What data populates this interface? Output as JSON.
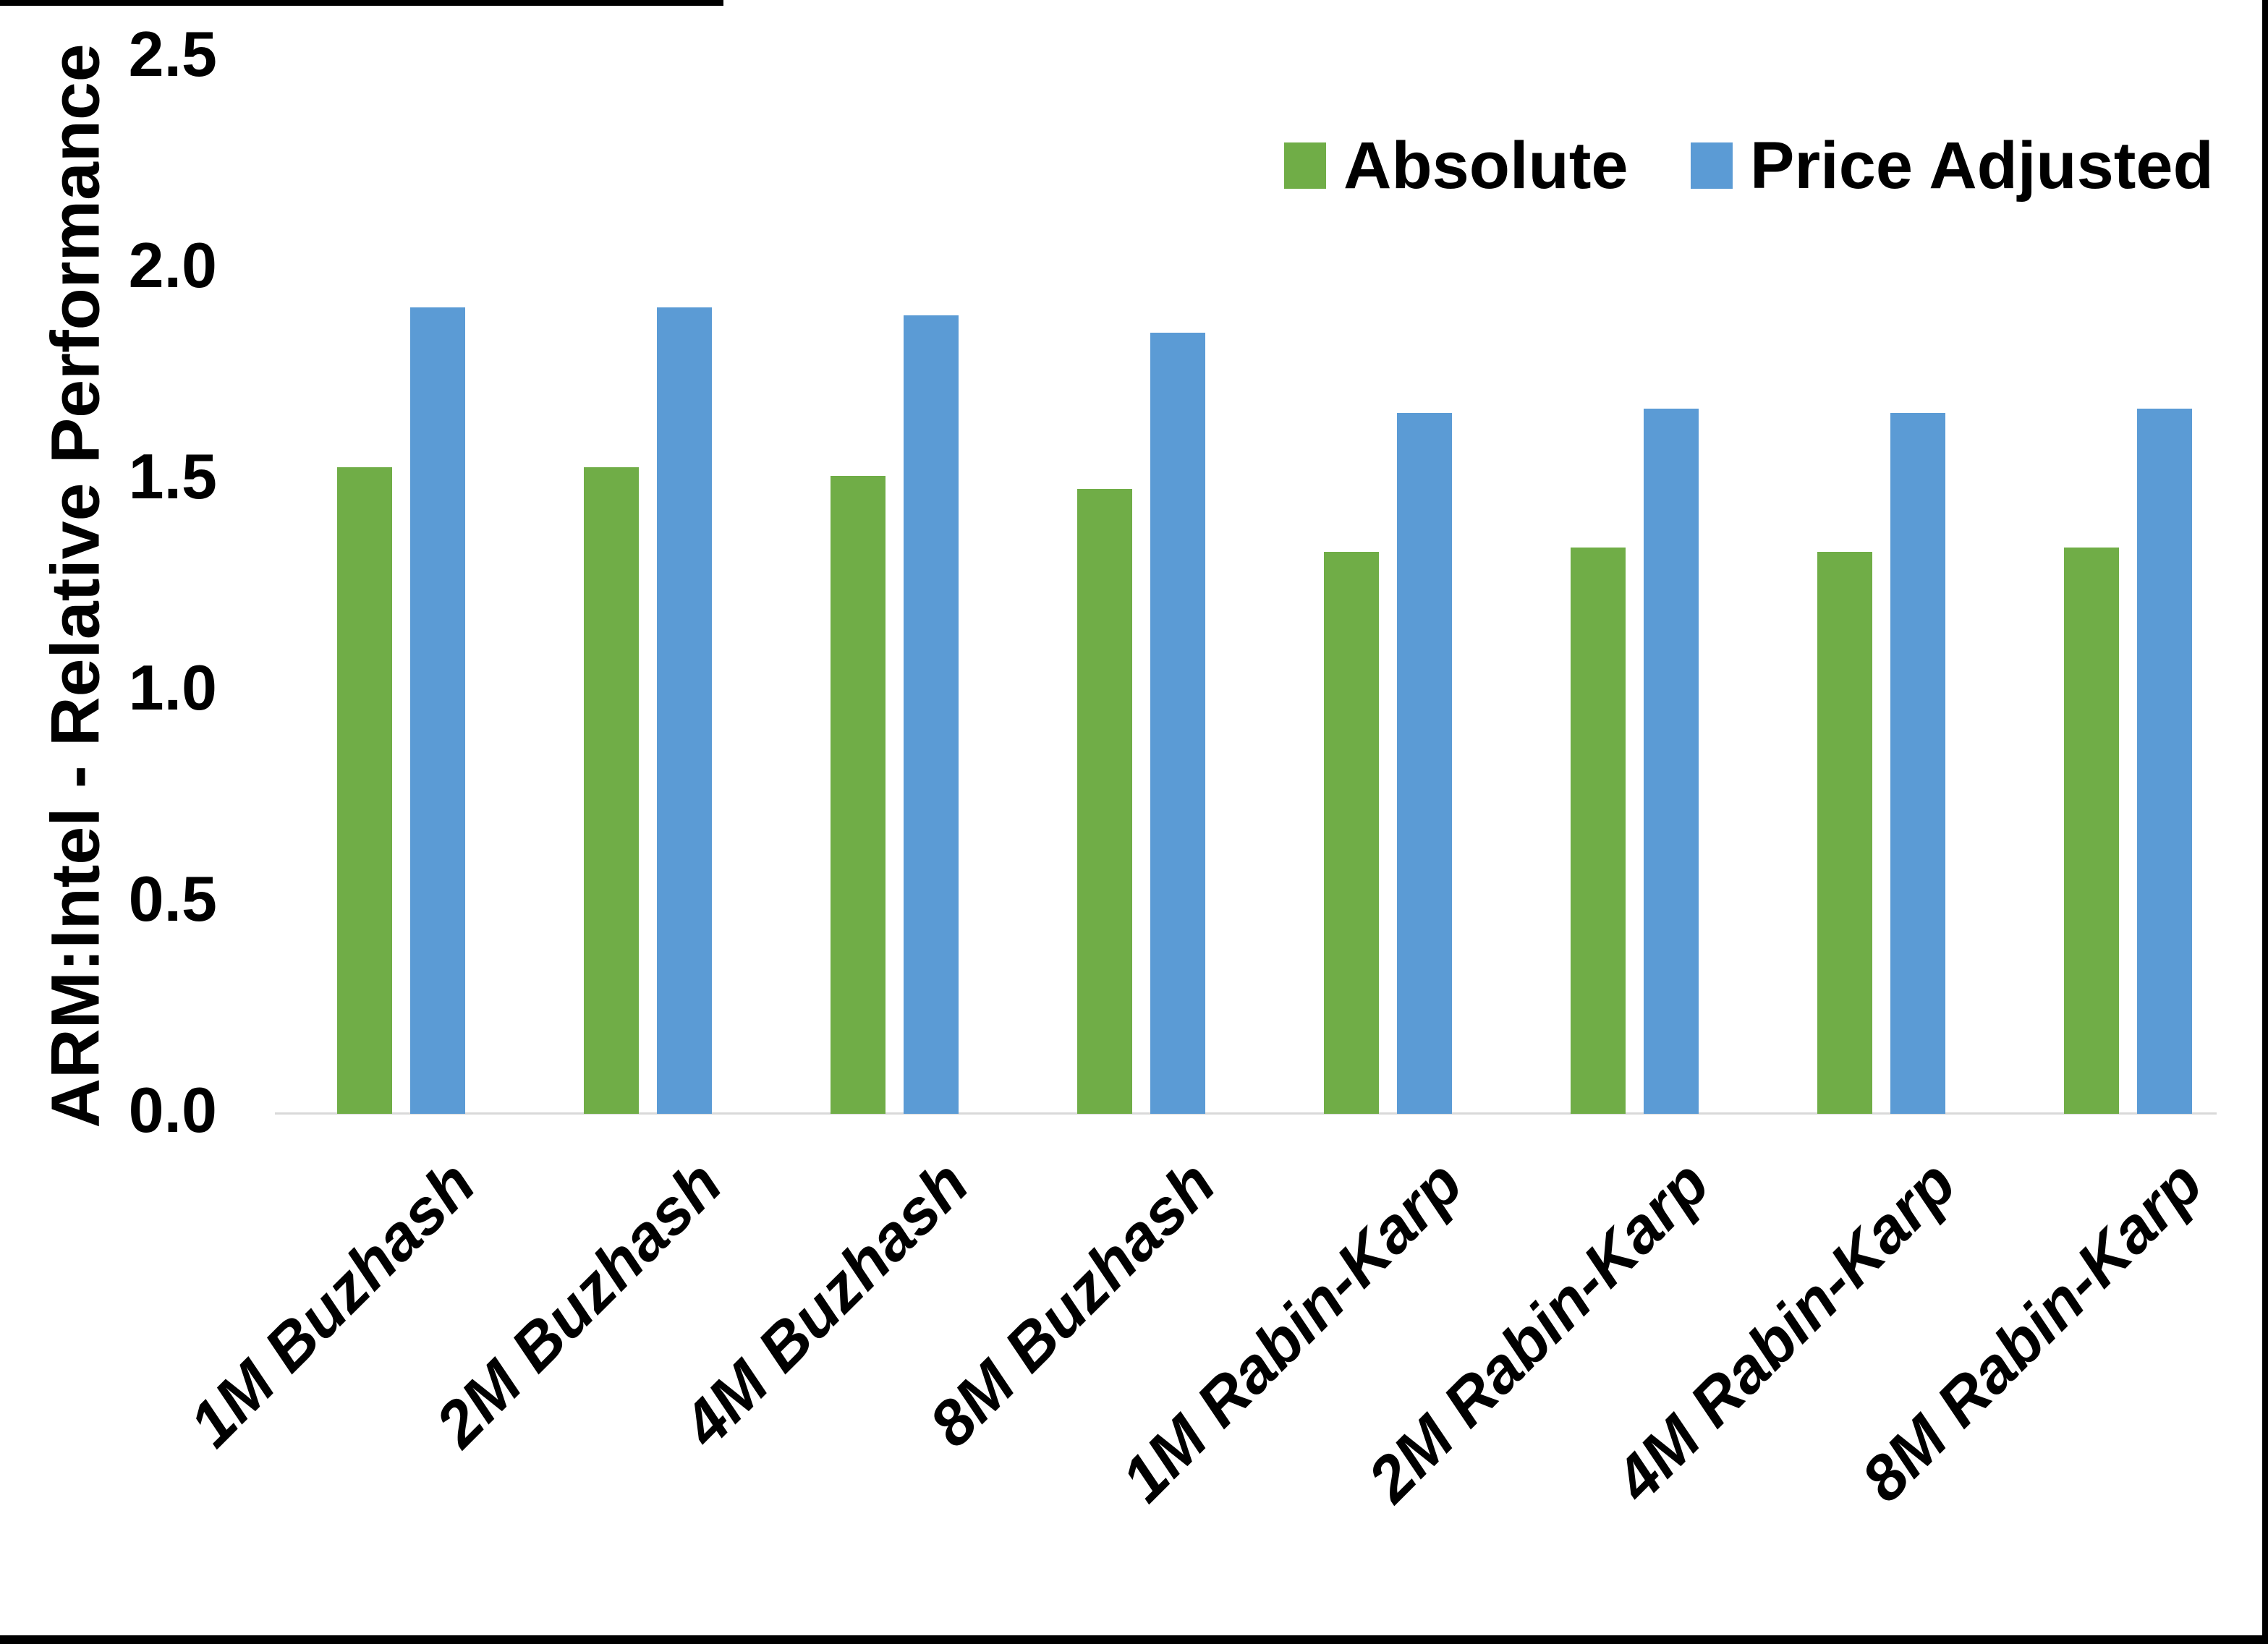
{
  "chart_data": {
    "type": "bar",
    "title": "",
    "xlabel": "",
    "ylabel": "ARM:Intel - Relative Performance",
    "ylim": [
      0,
      2.5
    ],
    "ytick_labels": [
      "0.0",
      "0.5",
      "1.0",
      "1.5",
      "2.0",
      "2.5"
    ],
    "grid": false,
    "legend_position": "top-right",
    "categories": [
      "1M Buzhash",
      "2M Buzhash",
      "4M Buzhash",
      "8M Buzhash",
      "1M Rabin-Karp",
      "2M Rabin-Karp",
      "4M Rabin-Karp",
      "8M Rabin-Karp"
    ],
    "series": [
      {
        "name": "Absolute",
        "color": "#70AD47",
        "values": [
          1.53,
          1.53,
          1.51,
          1.48,
          1.33,
          1.34,
          1.33,
          1.34
        ]
      },
      {
        "name": "Price Adjusted",
        "color": "#5B9BD5",
        "values": [
          1.91,
          1.91,
          1.89,
          1.85,
          1.66,
          1.67,
          1.66,
          1.67
        ]
      }
    ],
    "axis_line_color": "#D9D9D9",
    "text_color": "#000000",
    "background_color": "#FFFFFF"
  }
}
